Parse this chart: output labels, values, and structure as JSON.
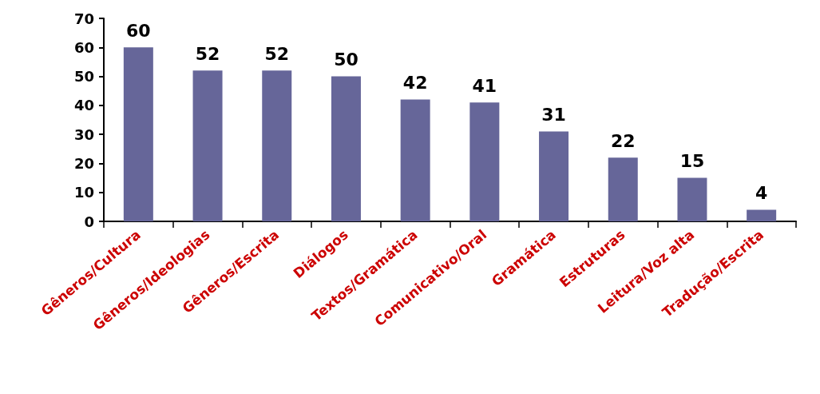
{
  "chart_data": {
    "type": "bar",
    "categories": [
      "Gêneros/Cultura",
      "Gêneros/Ideologias",
      "Gêneros/Escrita",
      "Diálogos",
      "Textos/Gramática",
      "Comunicativo/Oral",
      "Gramática",
      "Estruturas",
      "Leitura/Voz alta",
      "Tradução/Escrita"
    ],
    "values": [
      60,
      52,
      52,
      50,
      42,
      41,
      31,
      22,
      15,
      4
    ],
    "color": "#666699",
    "ylim": [
      0,
      70
    ],
    "yticks": [
      0,
      10,
      20,
      30,
      40,
      50,
      60,
      70
    ],
    "data_labels": true
  }
}
